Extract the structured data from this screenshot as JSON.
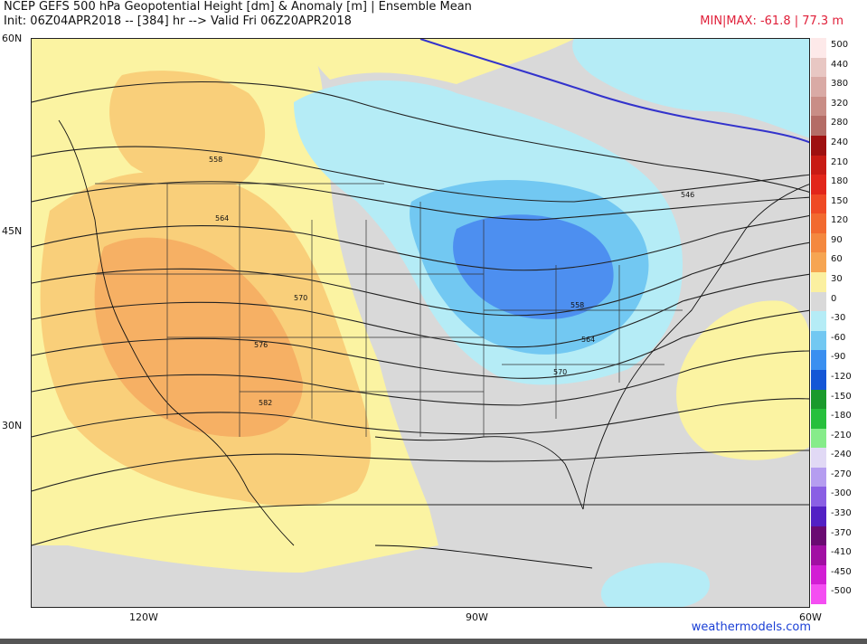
{
  "header": {
    "title_line1": "NCEP GEFS 500 hPa Geopotential Height [dm] & Anomaly [m] | Ensemble Mean",
    "title_line2": "Init: 06Z04APR2018 -- [384] hr --> Valid Fri 06Z20APR2018",
    "minmax": "MIN|MAX: -61.8 | 77.3 m"
  },
  "axes": {
    "lat_labels": [
      "60N",
      "45N",
      "30N"
    ],
    "lon_labels": [
      "120W",
      "90W",
      "60W"
    ]
  },
  "contour_labels": [
    "558",
    "564",
    "570",
    "576",
    "582",
    "546",
    "558",
    "564",
    "570"
  ],
  "legend": {
    "entries": [
      {
        "label": "500",
        "color": "#fde9e9"
      },
      {
        "label": "440",
        "color": "#e8c7c3"
      },
      {
        "label": "380",
        "color": "#d9aaa5"
      },
      {
        "label": "320",
        "color": "#c98d86"
      },
      {
        "label": "280",
        "color": "#b46c66"
      },
      {
        "label": "240",
        "color": "#9e1010"
      },
      {
        "label": "210",
        "color": "#c81b14"
      },
      {
        "label": "180",
        "color": "#e2261a"
      },
      {
        "label": "150",
        "color": "#ef4a24"
      },
      {
        "label": "120",
        "color": "#f26a2f"
      },
      {
        "label": "90",
        "color": "#f4883f"
      },
      {
        "label": "60",
        "color": "#f6a552"
      },
      {
        "label": "30",
        "color": "#fbf0a0"
      },
      {
        "label": "0",
        "color": "#d9d9d9"
      },
      {
        "label": "-30",
        "color": "#b5ecf6"
      },
      {
        "label": "-60",
        "color": "#72c8f2"
      },
      {
        "label": "-90",
        "color": "#3a8ff0"
      },
      {
        "label": "-120",
        "color": "#1456d6"
      },
      {
        "label": "-150",
        "color": "#1a9a2c"
      },
      {
        "label": "-180",
        "color": "#27c03c"
      },
      {
        "label": "-210",
        "color": "#86ec8a"
      },
      {
        "label": "-240",
        "color": "#e1d9f5"
      },
      {
        "label": "-270",
        "color": "#b59df0"
      },
      {
        "label": "-300",
        "color": "#8a5fe4"
      },
      {
        "label": "-330",
        "color": "#5220c4"
      },
      {
        "label": "-370",
        "color": "#6a0a72"
      },
      {
        "label": "-410",
        "color": "#a10fa3"
      },
      {
        "label": "-450",
        "color": "#d21ed4"
      },
      {
        "label": "-500",
        "color": "#f44ef2"
      }
    ]
  },
  "credit": "weathermodels.com",
  "colors": {
    "positive_light": "#fbf3a2",
    "positive_mid": "#f9cf7a",
    "positive_strong": "#f6b064",
    "neutral": "#d9d9d9",
    "negative_light": "#b5ecf6",
    "negative_mid": "#72c8f2",
    "negative_strong": "#4d8ff0",
    "contour_540": "#3333cc"
  }
}
